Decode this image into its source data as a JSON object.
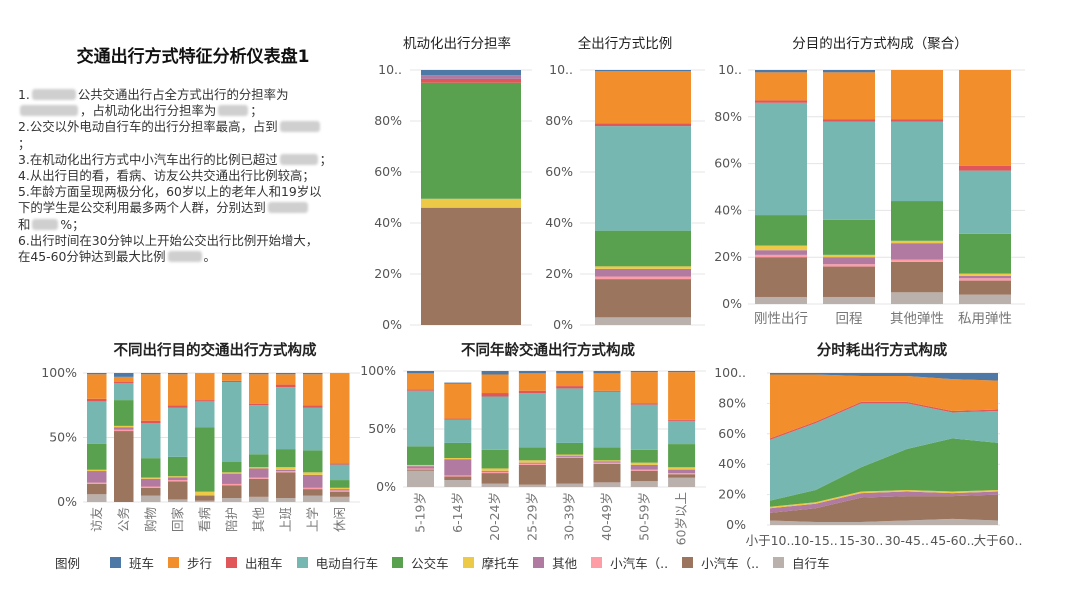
{
  "summary": {
    "title": "交通出行方式特征分析仪表盘1",
    "lines": [
      {
        "before": "1.",
        "redact": 44,
        "after": "公共交通出行占全方式出行的分担率为"
      },
      {
        "before": "",
        "redact": 58,
        "after": "，占机动化出行分担率为",
        "redact2": 30,
        "after2": "；"
      },
      {
        "before": "2.公交以外电动自行车的出行分担率最高，占到",
        "redact": 40,
        "after": ""
      },
      {
        "before": "；",
        "redact": 0,
        "after": ""
      },
      {
        "before": "3.在机动化出行方式中小汽车出行的比例已超过",
        "redact": 38,
        "after": "；"
      },
      {
        "before": "4.从出行目的看，看病、访友公共交通出行比例较高；",
        "redact": 0,
        "after": ""
      },
      {
        "before": "5.年龄方面呈现两极分化，60岁以上的老年人和19岁以",
        "redact": 0,
        "after": ""
      },
      {
        "before": "下的学生是公交利用最多两个人群，分别达到",
        "redact": 40,
        "after": ""
      },
      {
        "before": "和",
        "redact": 26,
        "after": "%；"
      },
      {
        "before": "6.出行时间在30分钟以上开始公交出行比例开始增大，",
        "redact": 0,
        "after": ""
      },
      {
        "before": "在45-60分钟达到最大比例",
        "redact": 34,
        "after": "。"
      }
    ]
  },
  "colors": {
    "班车": "#4e79a7",
    "步行": "#f28e2b",
    "出租车": "#e15759",
    "电动自行车": "#76b7b2",
    "公交车": "#59a14f",
    "摩托车": "#edc948",
    "其他": "#b07aa1",
    "小汽车（..1": "#ff9da7",
    "小汽车（..2": "#9c755f",
    "自行车": "#bab0ac"
  },
  "legend": {
    "title": "图例",
    "items": [
      {
        "key": "班车",
        "label": "班车"
      },
      {
        "key": "步行",
        "label": "步行"
      },
      {
        "key": "出租车",
        "label": "出租车"
      },
      {
        "key": "电动自行车",
        "label": "电动自行车"
      },
      {
        "key": "公交车",
        "label": "公交车"
      },
      {
        "key": "摩托车",
        "label": "摩托车"
      },
      {
        "key": "其他",
        "label": "其他"
      },
      {
        "key": "小汽车（..1",
        "label": "小汽车（.."
      },
      {
        "key": "小汽车（..2",
        "label": "小汽车（.."
      },
      {
        "key": "自行车",
        "label": "自行车"
      }
    ]
  },
  "chart_data": [
    {
      "id": "motor",
      "type": "bar",
      "title": "机动化出行分担率",
      "yticks": [
        "10..",
        "80%",
        "60%",
        "40%",
        "20%",
        "0%"
      ],
      "ylim": [
        0,
        100
      ],
      "categories": [
        ""
      ],
      "stack": [
        {
          "key": "小汽车（..2",
          "values": [
            46
          ]
        },
        {
          "key": "摩托车",
          "values": [
            3.5
          ]
        },
        {
          "key": "公交车",
          "values": [
            45.5
          ]
        },
        {
          "key": "出租车",
          "values": [
            1.5
          ]
        },
        {
          "key": "其他",
          "values": [
            1.5
          ]
        },
        {
          "key": "班车",
          "values": [
            2
          ]
        }
      ]
    },
    {
      "id": "all",
      "type": "bar",
      "title": "全出行方式比例",
      "yticks": [
        "10..",
        "80%",
        "60%",
        "40%",
        "20%",
        "0%"
      ],
      "ylim": [
        0,
        100
      ],
      "categories": [
        ""
      ],
      "stack": [
        {
          "key": "自行车",
          "values": [
            3
          ]
        },
        {
          "key": "小汽车（..2",
          "values": [
            15
          ]
        },
        {
          "key": "小汽车（..1",
          "values": [
            1
          ]
        },
        {
          "key": "其他",
          "values": [
            3
          ]
        },
        {
          "key": "摩托车",
          "values": [
            1
          ]
        },
        {
          "key": "公交车",
          "values": [
            14
          ]
        },
        {
          "key": "电动自行车",
          "values": [
            41
          ]
        },
        {
          "key": "出租车",
          "values": [
            1
          ]
        },
        {
          "key": "步行",
          "values": [
            20.5
          ]
        },
        {
          "key": "班车",
          "values": [
            0.5
          ]
        }
      ]
    },
    {
      "id": "purpose-agg",
      "type": "bar",
      "title": "分目的出行方式构成（聚合）",
      "yticks": [
        "10..",
        "80%",
        "60%",
        "40%",
        "20%",
        "0%"
      ],
      "ylim": [
        0,
        100
      ],
      "categories": [
        "刚性出行",
        "回程",
        "其他弹性",
        "私用弹性"
      ],
      "stack": [
        {
          "key": "自行车",
          "values": [
            3,
            3,
            5,
            4
          ]
        },
        {
          "key": "小汽车（..2",
          "values": [
            17,
            13,
            13,
            6
          ]
        },
        {
          "key": "小汽车（..1",
          "values": [
            1,
            1,
            1,
            1
          ]
        },
        {
          "key": "其他",
          "values": [
            2,
            3,
            7,
            1
          ]
        },
        {
          "key": "摩托车",
          "values": [
            2,
            1,
            1,
            1
          ]
        },
        {
          "key": "公交车",
          "values": [
            13,
            15,
            17,
            17
          ]
        },
        {
          "key": "电动自行车",
          "values": [
            48,
            42,
            34,
            27
          ]
        },
        {
          "key": "出租车",
          "values": [
            1,
            1,
            1,
            2
          ]
        },
        {
          "key": "步行",
          "values": [
            12,
            20,
            21,
            41
          ]
        },
        {
          "key": "班车",
          "values": [
            1,
            1,
            0,
            0
          ]
        }
      ]
    },
    {
      "id": "purpose",
      "type": "bar",
      "title": "不同出行目的交通出行方式构成",
      "yticks": [
        "100%",
        "50%",
        "0%"
      ],
      "ylim": [
        0,
        100
      ],
      "categories": [
        "访友",
        "公务",
        "购物",
        "回家",
        "看病",
        "陪护",
        "其他",
        "上班",
        "上学",
        "休闲"
      ],
      "stack": [
        {
          "key": "自行车",
          "values": [
            6,
            0,
            5,
            2,
            1,
            3,
            4,
            3,
            5,
            4
          ]
        },
        {
          "key": "小汽车（..2",
          "values": [
            8,
            55,
            6,
            14,
            4,
            10,
            14,
            20,
            5,
            4
          ]
        },
        {
          "key": "小汽车（..1",
          "values": [
            1,
            1,
            1,
            1,
            0,
            1,
            1,
            1,
            1,
            1
          ]
        },
        {
          "key": "其他",
          "values": [
            9,
            2,
            6,
            2,
            0,
            8,
            7,
            1,
            10,
            1
          ]
        },
        {
          "key": "摩托车",
          "values": [
            1,
            1,
            1,
            1,
            3,
            1,
            1,
            2,
            2,
            1
          ]
        },
        {
          "key": "公交车",
          "values": [
            20,
            20,
            15,
            15,
            50,
            8,
            10,
            14,
            17,
            6
          ]
        },
        {
          "key": "电动自行车",
          "values": [
            33,
            13,
            27,
            38,
            20,
            62,
            38,
            48,
            33,
            12
          ]
        },
        {
          "key": "出租车",
          "values": [
            2,
            1,
            2,
            2,
            1,
            1,
            1,
            2,
            2,
            1
          ]
        },
        {
          "key": "步行",
          "values": [
            19,
            4,
            36,
            24,
            21,
            5,
            23,
            8,
            24,
            70
          ]
        },
        {
          "key": "班车",
          "values": [
            1,
            3,
            1,
            1,
            0,
            1,
            1,
            1,
            1,
            0
          ]
        }
      ]
    },
    {
      "id": "age",
      "type": "bar",
      "title": "不同年龄交通出行方式构成",
      "yticks": [
        "100%",
        "50%",
        "0%"
      ],
      "ylim": [
        0,
        100
      ],
      "categories": [
        "5-19岁",
        "6-14岁",
        "20-24岁",
        "25-29岁",
        "30-39岁",
        "40-49岁",
        "50-59岁",
        "60岁以上"
      ],
      "stack": [
        {
          "key": "自行车",
          "values": [
            14,
            6,
            3,
            2,
            3,
            4,
            5,
            8
          ]
        },
        {
          "key": "小汽车（..2",
          "values": [
            1,
            3,
            9,
            17,
            22,
            16,
            9,
            3
          ]
        },
        {
          "key": "小汽车（..1",
          "values": [
            1,
            1,
            1,
            1,
            1,
            1,
            1,
            1
          ]
        },
        {
          "key": "其他",
          "values": [
            2,
            14,
            1,
            1,
            1,
            1,
            4,
            3
          ]
        },
        {
          "key": "摩托车",
          "values": [
            1,
            1,
            2,
            2,
            1,
            1,
            2,
            2
          ]
        },
        {
          "key": "公交车",
          "values": [
            16,
            13,
            16,
            11,
            10,
            11,
            11,
            20
          ]
        },
        {
          "key": "电动自行车",
          "values": [
            48,
            20,
            46,
            47,
            47,
            48,
            39,
            20
          ]
        },
        {
          "key": "出租车",
          "values": [
            1,
            1,
            3,
            2,
            2,
            1,
            1,
            1
          ]
        },
        {
          "key": "步行",
          "values": [
            14,
            30,
            16,
            15,
            11,
            15,
            27,
            41
          ]
        },
        {
          "key": "班车",
          "values": [
            2,
            1,
            3,
            2,
            2,
            2,
            1,
            1
          ]
        }
      ]
    },
    {
      "id": "duration",
      "type": "area",
      "title": "分时耗出行方式构成",
      "yticks": [
        "100..",
        "80%",
        "60%",
        "40%",
        "20%",
        "0%"
      ],
      "ylim": [
        0,
        100
      ],
      "categories": [
        "小于10..",
        "10-15..",
        "15-30..",
        "30-45..",
        "45-60..",
        "大于60.."
      ],
      "stack": [
        {
          "key": "自行车",
          "values": [
            3,
            2,
            2,
            3,
            4,
            3
          ]
        },
        {
          "key": "小汽车（..2",
          "values": [
            5,
            9,
            16,
            16,
            15,
            17
          ]
        },
        {
          "key": "其他",
          "values": [
            3,
            3,
            3,
            3,
            2,
            2
          ]
        },
        {
          "key": "摩托车",
          "values": [
            1,
            1,
            1,
            1,
            1,
            1
          ]
        },
        {
          "key": "公交车",
          "values": [
            4,
            8,
            16,
            27,
            35,
            31
          ]
        },
        {
          "key": "电动自行车",
          "values": [
            40,
            44,
            42,
            30,
            17,
            21
          ]
        },
        {
          "key": "出租车",
          "values": [
            1,
            1,
            1,
            1,
            1,
            1
          ]
        },
        {
          "key": "步行",
          "values": [
            42,
            31,
            17,
            17,
            21,
            19
          ]
        },
        {
          "key": "班车",
          "values": [
            1,
            1,
            2,
            2,
            4,
            5
          ]
        }
      ]
    }
  ]
}
